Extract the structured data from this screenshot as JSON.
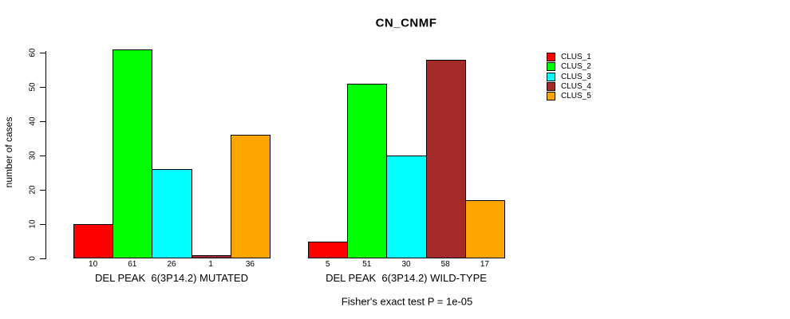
{
  "chart_data": {
    "type": "bar",
    "title": "CN_CNMF",
    "ylabel": "number of cases",
    "ylim": [
      0,
      60
    ],
    "yticks": [
      0,
      10,
      20,
      30,
      40,
      50,
      60
    ],
    "grid": false,
    "annotation": "Fisher's exact test P = 1e-05",
    "series_names": [
      "CLUS_1",
      "CLUS_2",
      "CLUS_3",
      "CLUS_4",
      "CLUS_5"
    ],
    "colors": [
      "#FF0000",
      "#00FF00",
      "#00FFFF",
      "#A52A2A",
      "#FFA500"
    ],
    "groups": [
      {
        "label": "DEL PEAK  6(3P14.2) MUTATED",
        "values": [
          10,
          61,
          26,
          1,
          36
        ]
      },
      {
        "label": "DEL PEAK  6(3P14.2) WILD-TYPE",
        "values": [
          5,
          51,
          30,
          58,
          17
        ]
      }
    ],
    "legend": {
      "position": "right",
      "entries": [
        {
          "label": "CLUS_1",
          "color": "#FF0000"
        },
        {
          "label": "CLUS_2",
          "color": "#00FF00"
        },
        {
          "label": "CLUS_3",
          "color": "#00FFFF"
        },
        {
          "label": "CLUS_4",
          "color": "#A52A2A"
        },
        {
          "label": "CLUS_5",
          "color": "#FFA500"
        }
      ]
    }
  }
}
